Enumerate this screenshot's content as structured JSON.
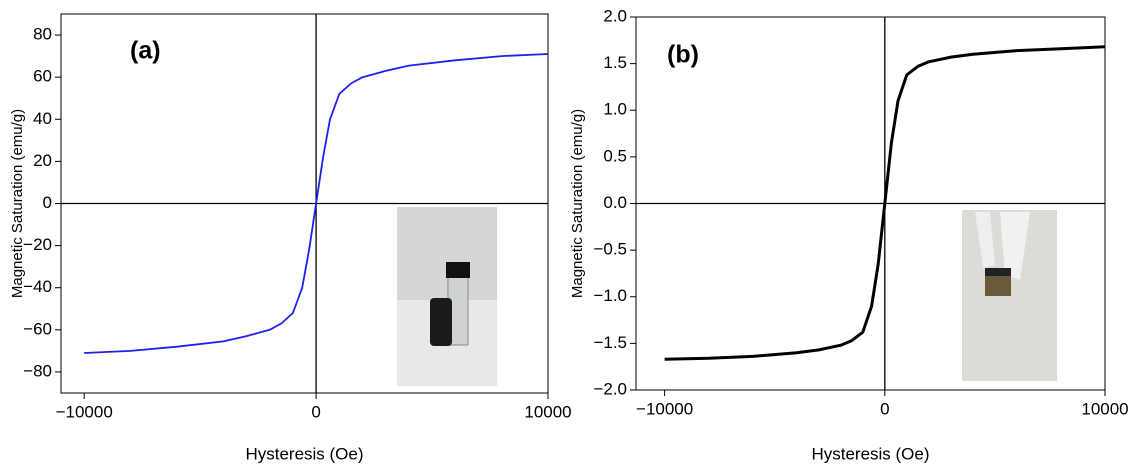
{
  "chart_data": [
    {
      "type": "line",
      "annotation": "(a)",
      "xlabel": "Hysteresis (Oe)",
      "ylabel": "Magnetic Saturation (emu/g)",
      "color": "#1f1fef",
      "x": [
        -10000,
        -8000,
        -6000,
        -4000,
        -3000,
        -2000,
        -1500,
        -1000,
        -600,
        -300,
        0,
        300,
        600,
        1000,
        1500,
        2000,
        3000,
        4000,
        6000,
        8000,
        10000
      ],
      "values": [
        -71,
        -70,
        -68,
        -65.5,
        -63,
        -60,
        -57,
        -52,
        -40,
        -22,
        0,
        22,
        40,
        52,
        57,
        60,
        63,
        65.5,
        68,
        70,
        71
      ],
      "xlim": [
        -11000,
        10000
      ],
      "ylim": [
        -90,
        90
      ],
      "xticks": [
        {
          "value": -10000,
          "label": "−10000"
        },
        0,
        10000
      ],
      "yticks": [
        {
          "value": -80,
          "label": "−80"
        },
        {
          "value": -60,
          "label": "−60"
        },
        {
          "value": -40,
          "label": "−40"
        },
        {
          "value": -20,
          "label": "−20"
        },
        0,
        20,
        40,
        60,
        80
      ]
    },
    {
      "type": "line",
      "annotation": "(b)",
      "xlabel": "Hysteresis (Oe)",
      "ylabel": "Magnetic Saturation (emu/g)",
      "color": "#000000",
      "x": [
        -10000,
        -8000,
        -6000,
        -4000,
        -3000,
        -2000,
        -1500,
        -1000,
        -600,
        -300,
        0,
        300,
        600,
        1000,
        1500,
        2000,
        3000,
        4000,
        6000,
        8000,
        10000
      ],
      "values": [
        -1.67,
        -1.66,
        -1.64,
        -1.6,
        -1.57,
        -1.52,
        -1.47,
        -1.38,
        -1.1,
        -0.65,
        0,
        0.65,
        1.1,
        1.38,
        1.47,
        1.52,
        1.57,
        1.6,
        1.64,
        1.66,
        1.68
      ],
      "xlim": [
        -11300,
        10000
      ],
      "ylim": [
        -2.0,
        2.0
      ],
      "xticks": [
        {
          "value": -10000,
          "label": "−10000"
        },
        0,
        10000
      ],
      "yticks": [
        {
          "value": -2,
          "label": "−2.0"
        },
        {
          "value": -1.5,
          "label": "−1.5"
        },
        {
          "value": -1,
          "label": "−1.0"
        },
        {
          "value": -0.5,
          "label": "−0.5"
        },
        {
          "value": 0,
          "label": "0.0"
        },
        0.5,
        {
          "value": 1,
          "label": "1.0"
        },
        1.5,
        {
          "value": 2,
          "label": "2.0"
        }
      ]
    }
  ]
}
